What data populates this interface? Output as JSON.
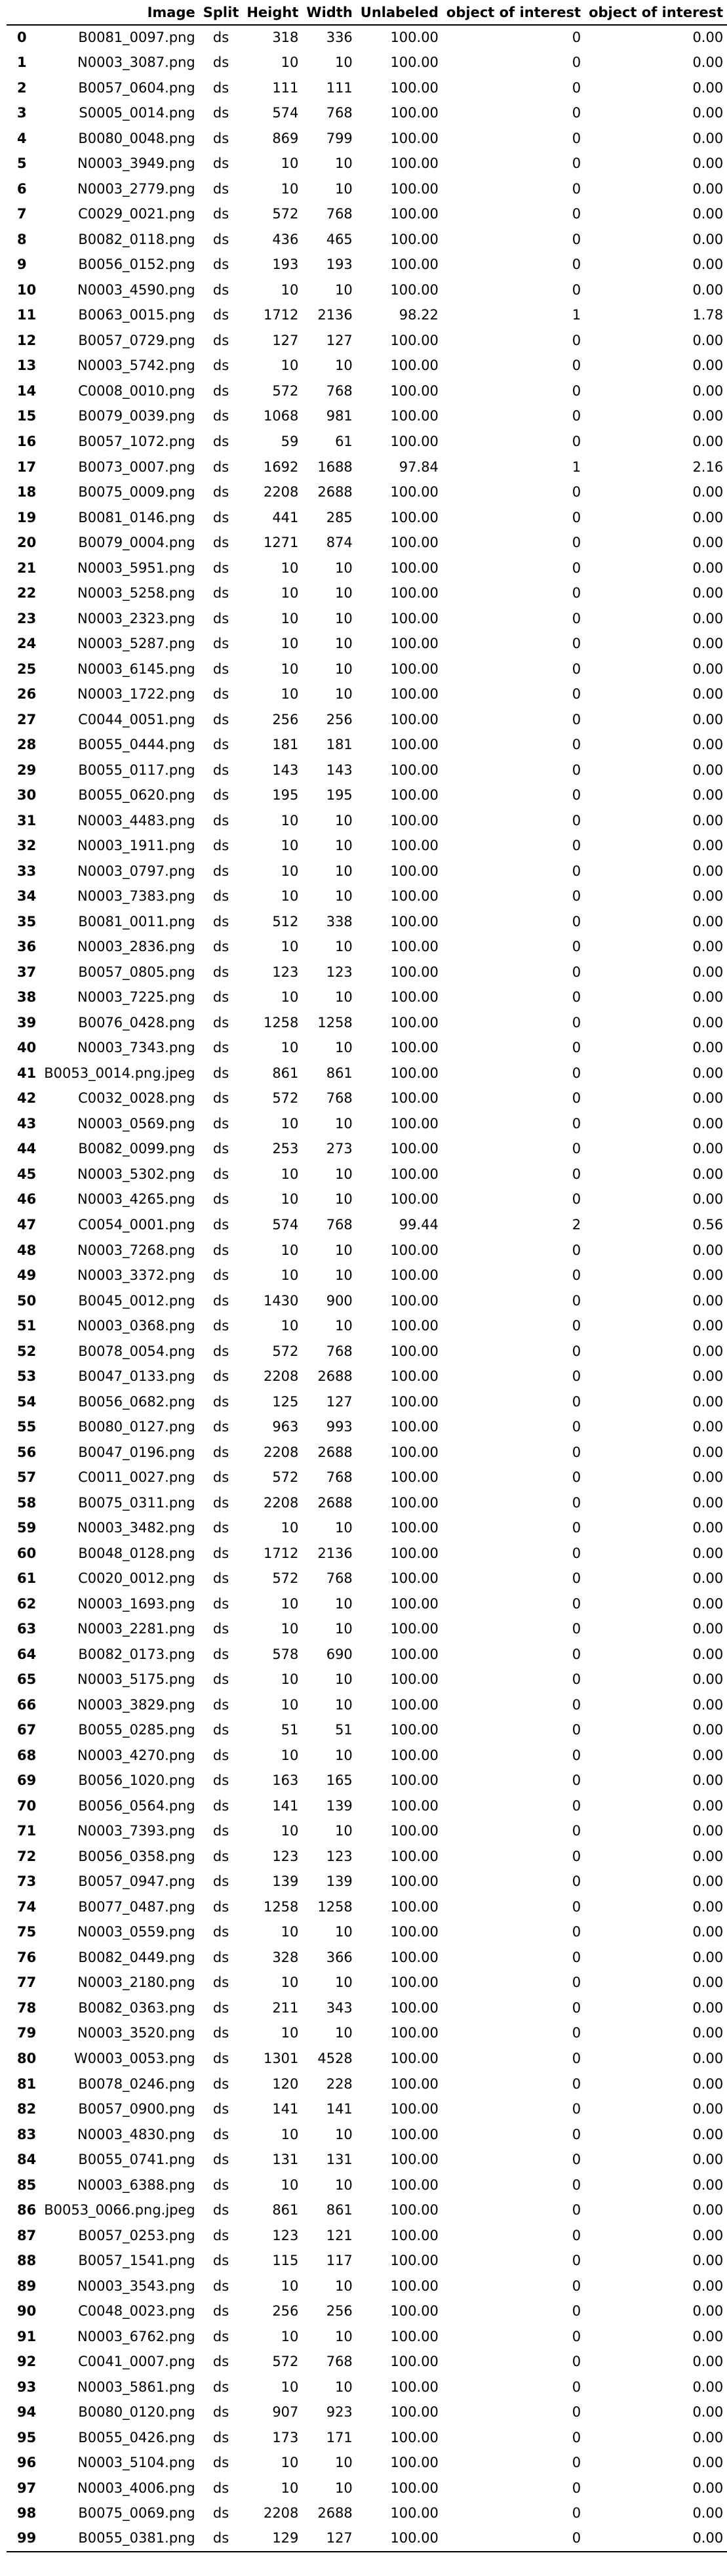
{
  "table": {
    "headers": [
      "",
      "Image",
      "Split",
      "Height",
      "Width",
      "Unlabeled",
      "object of interest",
      "object of interest"
    ],
    "rows": [
      [
        "0",
        "B0081_0097.png",
        "ds",
        "318",
        "336",
        "100.00",
        "0",
        "0.00"
      ],
      [
        "1",
        "N0003_3087.png",
        "ds",
        "10",
        "10",
        "100.00",
        "0",
        "0.00"
      ],
      [
        "2",
        "B0057_0604.png",
        "ds",
        "111",
        "111",
        "100.00",
        "0",
        "0.00"
      ],
      [
        "3",
        "S0005_0014.png",
        "ds",
        "574",
        "768",
        "100.00",
        "0",
        "0.00"
      ],
      [
        "4",
        "B0080_0048.png",
        "ds",
        "869",
        "799",
        "100.00",
        "0",
        "0.00"
      ],
      [
        "5",
        "N0003_3949.png",
        "ds",
        "10",
        "10",
        "100.00",
        "0",
        "0.00"
      ],
      [
        "6",
        "N0003_2779.png",
        "ds",
        "10",
        "10",
        "100.00",
        "0",
        "0.00"
      ],
      [
        "7",
        "C0029_0021.png",
        "ds",
        "572",
        "768",
        "100.00",
        "0",
        "0.00"
      ],
      [
        "8",
        "B0082_0118.png",
        "ds",
        "436",
        "465",
        "100.00",
        "0",
        "0.00"
      ],
      [
        "9",
        "B0056_0152.png",
        "ds",
        "193",
        "193",
        "100.00",
        "0",
        "0.00"
      ],
      [
        "10",
        "N0003_4590.png",
        "ds",
        "10",
        "10",
        "100.00",
        "0",
        "0.00"
      ],
      [
        "11",
        "B0063_0015.png",
        "ds",
        "1712",
        "2136",
        "98.22",
        "1",
        "1.78"
      ],
      [
        "12",
        "B0057_0729.png",
        "ds",
        "127",
        "127",
        "100.00",
        "0",
        "0.00"
      ],
      [
        "13",
        "N0003_5742.png",
        "ds",
        "10",
        "10",
        "100.00",
        "0",
        "0.00"
      ],
      [
        "14",
        "C0008_0010.png",
        "ds",
        "572",
        "768",
        "100.00",
        "0",
        "0.00"
      ],
      [
        "15",
        "B0079_0039.png",
        "ds",
        "1068",
        "981",
        "100.00",
        "0",
        "0.00"
      ],
      [
        "16",
        "B0057_1072.png",
        "ds",
        "59",
        "61",
        "100.00",
        "0",
        "0.00"
      ],
      [
        "17",
        "B0073_0007.png",
        "ds",
        "1692",
        "1688",
        "97.84",
        "1",
        "2.16"
      ],
      [
        "18",
        "B0075_0009.png",
        "ds",
        "2208",
        "2688",
        "100.00",
        "0",
        "0.00"
      ],
      [
        "19",
        "B0081_0146.png",
        "ds",
        "441",
        "285",
        "100.00",
        "0",
        "0.00"
      ],
      [
        "20",
        "B0079_0004.png",
        "ds",
        "1271",
        "874",
        "100.00",
        "0",
        "0.00"
      ],
      [
        "21",
        "N0003_5951.png",
        "ds",
        "10",
        "10",
        "100.00",
        "0",
        "0.00"
      ],
      [
        "22",
        "N0003_5258.png",
        "ds",
        "10",
        "10",
        "100.00",
        "0",
        "0.00"
      ],
      [
        "23",
        "N0003_2323.png",
        "ds",
        "10",
        "10",
        "100.00",
        "0",
        "0.00"
      ],
      [
        "24",
        "N0003_5287.png",
        "ds",
        "10",
        "10",
        "100.00",
        "0",
        "0.00"
      ],
      [
        "25",
        "N0003_6145.png",
        "ds",
        "10",
        "10",
        "100.00",
        "0",
        "0.00"
      ],
      [
        "26",
        "N0003_1722.png",
        "ds",
        "10",
        "10",
        "100.00",
        "0",
        "0.00"
      ],
      [
        "27",
        "C0044_0051.png",
        "ds",
        "256",
        "256",
        "100.00",
        "0",
        "0.00"
      ],
      [
        "28",
        "B0055_0444.png",
        "ds",
        "181",
        "181",
        "100.00",
        "0",
        "0.00"
      ],
      [
        "29",
        "B0055_0117.png",
        "ds",
        "143",
        "143",
        "100.00",
        "0",
        "0.00"
      ],
      [
        "30",
        "B0055_0620.png",
        "ds",
        "195",
        "195",
        "100.00",
        "0",
        "0.00"
      ],
      [
        "31",
        "N0003_4483.png",
        "ds",
        "10",
        "10",
        "100.00",
        "0",
        "0.00"
      ],
      [
        "32",
        "N0003_1911.png",
        "ds",
        "10",
        "10",
        "100.00",
        "0",
        "0.00"
      ],
      [
        "33",
        "N0003_0797.png",
        "ds",
        "10",
        "10",
        "100.00",
        "0",
        "0.00"
      ],
      [
        "34",
        "N0003_7383.png",
        "ds",
        "10",
        "10",
        "100.00",
        "0",
        "0.00"
      ],
      [
        "35",
        "B0081_0011.png",
        "ds",
        "512",
        "338",
        "100.00",
        "0",
        "0.00"
      ],
      [
        "36",
        "N0003_2836.png",
        "ds",
        "10",
        "10",
        "100.00",
        "0",
        "0.00"
      ],
      [
        "37",
        "B0057_0805.png",
        "ds",
        "123",
        "123",
        "100.00",
        "0",
        "0.00"
      ],
      [
        "38",
        "N0003_7225.png",
        "ds",
        "10",
        "10",
        "100.00",
        "0",
        "0.00"
      ],
      [
        "39",
        "B0076_0428.png",
        "ds",
        "1258",
        "1258",
        "100.00",
        "0",
        "0.00"
      ],
      [
        "40",
        "N0003_7343.png",
        "ds",
        "10",
        "10",
        "100.00",
        "0",
        "0.00"
      ],
      [
        "41",
        "B0053_0014.png.jpeg",
        "ds",
        "861",
        "861",
        "100.00",
        "0",
        "0.00"
      ],
      [
        "42",
        "C0032_0028.png",
        "ds",
        "572",
        "768",
        "100.00",
        "0",
        "0.00"
      ],
      [
        "43",
        "N0003_0569.png",
        "ds",
        "10",
        "10",
        "100.00",
        "0",
        "0.00"
      ],
      [
        "44",
        "B0082_0099.png",
        "ds",
        "253",
        "273",
        "100.00",
        "0",
        "0.00"
      ],
      [
        "45",
        "N0003_5302.png",
        "ds",
        "10",
        "10",
        "100.00",
        "0",
        "0.00"
      ],
      [
        "46",
        "N0003_4265.png",
        "ds",
        "10",
        "10",
        "100.00",
        "0",
        "0.00"
      ],
      [
        "47",
        "C0054_0001.png",
        "ds",
        "574",
        "768",
        "99.44",
        "2",
        "0.56"
      ],
      [
        "48",
        "N0003_7268.png",
        "ds",
        "10",
        "10",
        "100.00",
        "0",
        "0.00"
      ],
      [
        "49",
        "N0003_3372.png",
        "ds",
        "10",
        "10",
        "100.00",
        "0",
        "0.00"
      ],
      [
        "50",
        "B0045_0012.png",
        "ds",
        "1430",
        "900",
        "100.00",
        "0",
        "0.00"
      ],
      [
        "51",
        "N0003_0368.png",
        "ds",
        "10",
        "10",
        "100.00",
        "0",
        "0.00"
      ],
      [
        "52",
        "B0078_0054.png",
        "ds",
        "572",
        "768",
        "100.00",
        "0",
        "0.00"
      ],
      [
        "53",
        "B0047_0133.png",
        "ds",
        "2208",
        "2688",
        "100.00",
        "0",
        "0.00"
      ],
      [
        "54",
        "B0056_0682.png",
        "ds",
        "125",
        "127",
        "100.00",
        "0",
        "0.00"
      ],
      [
        "55",
        "B0080_0127.png",
        "ds",
        "963",
        "993",
        "100.00",
        "0",
        "0.00"
      ],
      [
        "56",
        "B0047_0196.png",
        "ds",
        "2208",
        "2688",
        "100.00",
        "0",
        "0.00"
      ],
      [
        "57",
        "C0011_0027.png",
        "ds",
        "572",
        "768",
        "100.00",
        "0",
        "0.00"
      ],
      [
        "58",
        "B0075_0311.png",
        "ds",
        "2208",
        "2688",
        "100.00",
        "0",
        "0.00"
      ],
      [
        "59",
        "N0003_3482.png",
        "ds",
        "10",
        "10",
        "100.00",
        "0",
        "0.00"
      ],
      [
        "60",
        "B0048_0128.png",
        "ds",
        "1712",
        "2136",
        "100.00",
        "0",
        "0.00"
      ],
      [
        "61",
        "C0020_0012.png",
        "ds",
        "572",
        "768",
        "100.00",
        "0",
        "0.00"
      ],
      [
        "62",
        "N0003_1693.png",
        "ds",
        "10",
        "10",
        "100.00",
        "0",
        "0.00"
      ],
      [
        "63",
        "N0003_2281.png",
        "ds",
        "10",
        "10",
        "100.00",
        "0",
        "0.00"
      ],
      [
        "64",
        "B0082_0173.png",
        "ds",
        "578",
        "690",
        "100.00",
        "0",
        "0.00"
      ],
      [
        "65",
        "N0003_5175.png",
        "ds",
        "10",
        "10",
        "100.00",
        "0",
        "0.00"
      ],
      [
        "66",
        "N0003_3829.png",
        "ds",
        "10",
        "10",
        "100.00",
        "0",
        "0.00"
      ],
      [
        "67",
        "B0055_0285.png",
        "ds",
        "51",
        "51",
        "100.00",
        "0",
        "0.00"
      ],
      [
        "68",
        "N0003_4270.png",
        "ds",
        "10",
        "10",
        "100.00",
        "0",
        "0.00"
      ],
      [
        "69",
        "B0056_1020.png",
        "ds",
        "163",
        "165",
        "100.00",
        "0",
        "0.00"
      ],
      [
        "70",
        "B0056_0564.png",
        "ds",
        "141",
        "139",
        "100.00",
        "0",
        "0.00"
      ],
      [
        "71",
        "N0003_7393.png",
        "ds",
        "10",
        "10",
        "100.00",
        "0",
        "0.00"
      ],
      [
        "72",
        "B0056_0358.png",
        "ds",
        "123",
        "123",
        "100.00",
        "0",
        "0.00"
      ],
      [
        "73",
        "B0057_0947.png",
        "ds",
        "139",
        "139",
        "100.00",
        "0",
        "0.00"
      ],
      [
        "74",
        "B0077_0487.png",
        "ds",
        "1258",
        "1258",
        "100.00",
        "0",
        "0.00"
      ],
      [
        "75",
        "N0003_0559.png",
        "ds",
        "10",
        "10",
        "100.00",
        "0",
        "0.00"
      ],
      [
        "76",
        "B0082_0449.png",
        "ds",
        "328",
        "366",
        "100.00",
        "0",
        "0.00"
      ],
      [
        "77",
        "N0003_2180.png",
        "ds",
        "10",
        "10",
        "100.00",
        "0",
        "0.00"
      ],
      [
        "78",
        "B0082_0363.png",
        "ds",
        "211",
        "343",
        "100.00",
        "0",
        "0.00"
      ],
      [
        "79",
        "N0003_3520.png",
        "ds",
        "10",
        "10",
        "100.00",
        "0",
        "0.00"
      ],
      [
        "80",
        "W0003_0053.png",
        "ds",
        "1301",
        "4528",
        "100.00",
        "0",
        "0.00"
      ],
      [
        "81",
        "B0078_0246.png",
        "ds",
        "120",
        "228",
        "100.00",
        "0",
        "0.00"
      ],
      [
        "82",
        "B0057_0900.png",
        "ds",
        "141",
        "141",
        "100.00",
        "0",
        "0.00"
      ],
      [
        "83",
        "N0003_4830.png",
        "ds",
        "10",
        "10",
        "100.00",
        "0",
        "0.00"
      ],
      [
        "84",
        "B0055_0741.png",
        "ds",
        "131",
        "131",
        "100.00",
        "0",
        "0.00"
      ],
      [
        "85",
        "N0003_6388.png",
        "ds",
        "10",
        "10",
        "100.00",
        "0",
        "0.00"
      ],
      [
        "86",
        "B0053_0066.png.jpeg",
        "ds",
        "861",
        "861",
        "100.00",
        "0",
        "0.00"
      ],
      [
        "87",
        "B0057_0253.png",
        "ds",
        "123",
        "121",
        "100.00",
        "0",
        "0.00"
      ],
      [
        "88",
        "B0057_1541.png",
        "ds",
        "115",
        "117",
        "100.00",
        "0",
        "0.00"
      ],
      [
        "89",
        "N0003_3543.png",
        "ds",
        "10",
        "10",
        "100.00",
        "0",
        "0.00"
      ],
      [
        "90",
        "C0048_0023.png",
        "ds",
        "256",
        "256",
        "100.00",
        "0",
        "0.00"
      ],
      [
        "91",
        "N0003_6762.png",
        "ds",
        "10",
        "10",
        "100.00",
        "0",
        "0.00"
      ],
      [
        "92",
        "C0041_0007.png",
        "ds",
        "572",
        "768",
        "100.00",
        "0",
        "0.00"
      ],
      [
        "93",
        "N0003_5861.png",
        "ds",
        "10",
        "10",
        "100.00",
        "0",
        "0.00"
      ],
      [
        "94",
        "B0080_0120.png",
        "ds",
        "907",
        "923",
        "100.00",
        "0",
        "0.00"
      ],
      [
        "95",
        "B0055_0426.png",
        "ds",
        "173",
        "171",
        "100.00",
        "0",
        "0.00"
      ],
      [
        "96",
        "N0003_5104.png",
        "ds",
        "10",
        "10",
        "100.00",
        "0",
        "0.00"
      ],
      [
        "97",
        "N0003_4006.png",
        "ds",
        "10",
        "10",
        "100.00",
        "0",
        "0.00"
      ],
      [
        "98",
        "B0075_0069.png",
        "ds",
        "2208",
        "2688",
        "100.00",
        "0",
        "0.00"
      ],
      [
        "99",
        "B0055_0381.png",
        "ds",
        "129",
        "127",
        "100.00",
        "0",
        "0.00"
      ]
    ]
  }
}
